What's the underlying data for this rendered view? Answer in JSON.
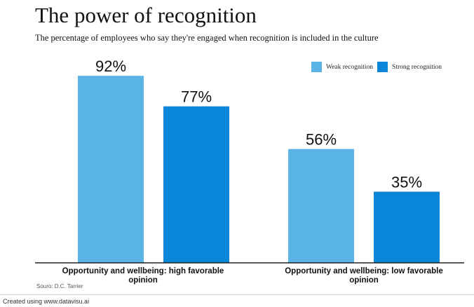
{
  "title": "The power of recognition",
  "subtitle": "The percentage of employees who say they're engaged when recognition is included in the culture",
  "source": "Souro: D.C. Tarrier",
  "footer": "Created using www.datavisu.ai",
  "colors": {
    "weak": "#5ab4e5",
    "strong": "#0a86d8",
    "axis": "#222222"
  },
  "chart_data": {
    "type": "bar",
    "title": "The power of recognition",
    "subtitle": "The percentage of employees who say they're engaged when recognition is included in the culture",
    "categories": [
      "Opportunity and wellbeing: high favorable opinion",
      "Opportunity and wellbeing: low favorable opinion"
    ],
    "category_label_lines": [
      [
        "Opportunity and wellbeing: high favorable",
        "opinion"
      ],
      [
        "Opportunity and wellbeing: low favorable",
        "opinion"
      ]
    ],
    "series": [
      {
        "name": "Weak recognition",
        "values": [
          92,
          56
        ],
        "labels": [
          "92%",
          "56%"
        ],
        "color": "#5ab4e5"
      },
      {
        "name": "Strong recognition",
        "values": [
          77,
          35
        ],
        "labels": [
          "77%",
          "35%"
        ],
        "color": "#0a86d8"
      }
    ],
    "ylim": [
      0,
      100
    ],
    "grid": false,
    "legend_position": "top-right",
    "data_labels": true
  }
}
